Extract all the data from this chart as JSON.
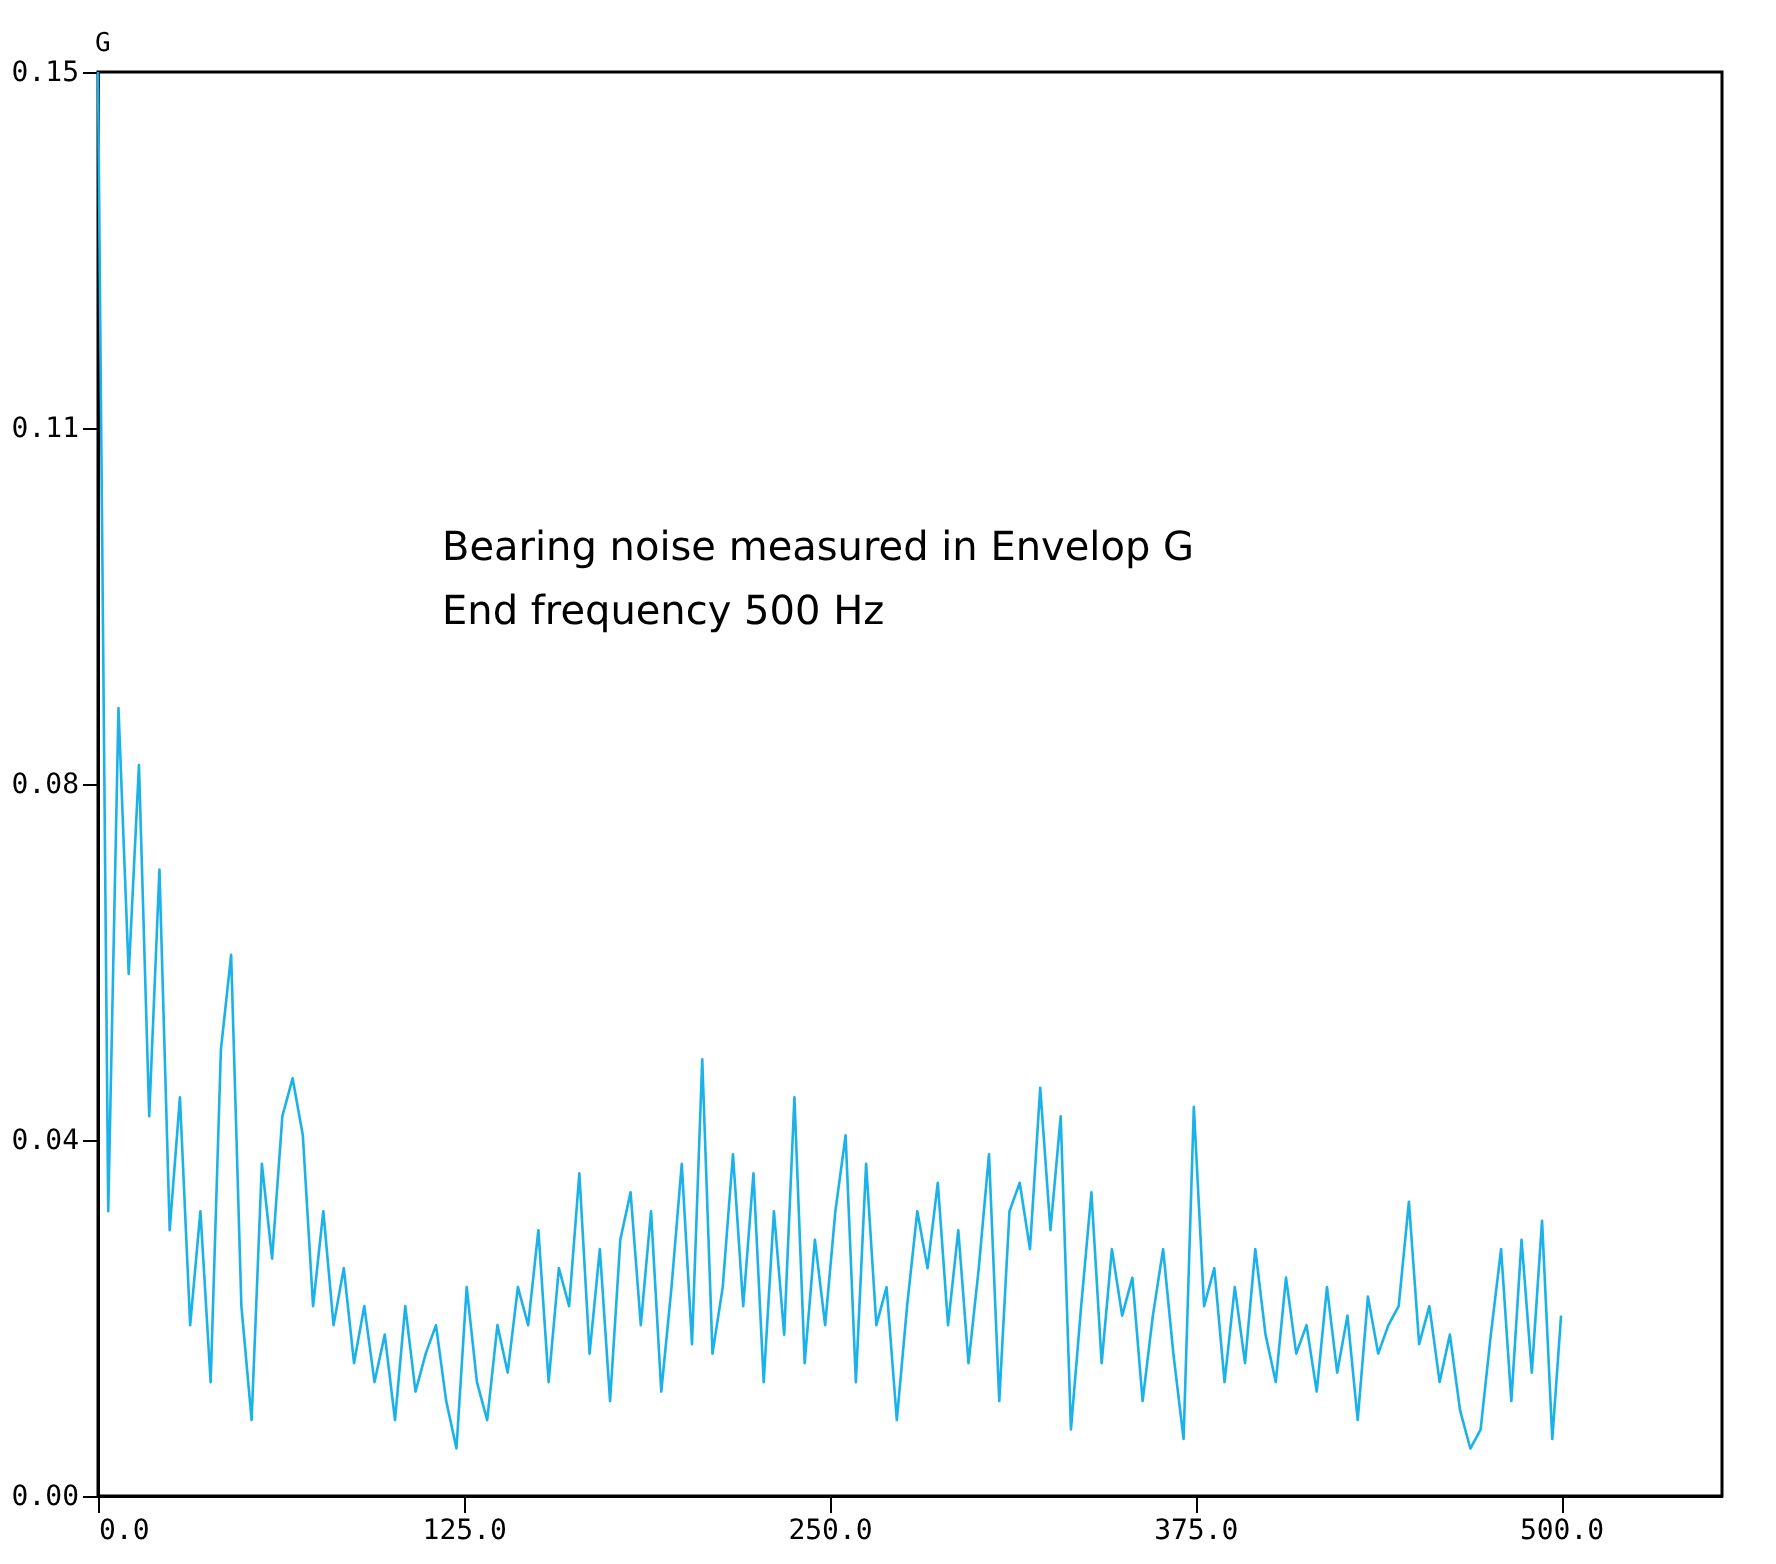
{
  "chart_data": {
    "type": "line",
    "ylabel": "G",
    "annotations": [
      "Bearing noise measured in Envelop G",
      "End frequency 500 Hz"
    ],
    "xlim": [
      0,
      555
    ],
    "ylim": [
      0,
      0.15
    ],
    "xticks": [
      {
        "value": 0,
        "label": "0.0"
      },
      {
        "value": 125,
        "label": "125.0"
      },
      {
        "value": 250,
        "label": "250.0"
      },
      {
        "value": 375,
        "label": "375.0"
      },
      {
        "value": 500,
        "label": "500.0"
      }
    ],
    "yticks": [
      {
        "value": 0,
        "label": "0.00"
      },
      {
        "value": 0.0375,
        "label": "0.04"
      },
      {
        "value": 0.075,
        "label": "0.08"
      },
      {
        "value": 0.1125,
        "label": "0.11"
      },
      {
        "value": 0.15,
        "label": "0.15"
      }
    ],
    "grid": false,
    "marker": "none",
    "line_style": "solid",
    "x": [
      0,
      3.5,
      7,
      10.5,
      14,
      17.5,
      21,
      24.5,
      28,
      31.5,
      35,
      38.5,
      42,
      45.5,
      49,
      52.5,
      56,
      59.5,
      63,
      66.5,
      70,
      73.5,
      77,
      80.5,
      84,
      87.5,
      91,
      94.5,
      98,
      101.5,
      105,
      108.5,
      112,
      115.5,
      119,
      122.5,
      126,
      129.5,
      133,
      136.5,
      140,
      143.5,
      147,
      150.5,
      154,
      157.5,
      161,
      164.5,
      168,
      171.5,
      175,
      178.5,
      182,
      185.5,
      189,
      192.5,
      196,
      199.5,
      203,
      206.5,
      210,
      213.5,
      217,
      220.5,
      224,
      227.5,
      231,
      234.5,
      238,
      241.5,
      245,
      248.5,
      252,
      255.5,
      259,
      262.5,
      266,
      269.5,
      273,
      276.5,
      280,
      283.5,
      287,
      290.5,
      294,
      297.5,
      301,
      304.5,
      308,
      311.5,
      315,
      318.5,
      322,
      325.5,
      329,
      332.5,
      336,
      339.5,
      343,
      346.5,
      350,
      353.5,
      357,
      360.5,
      364,
      367.5,
      371,
      374.5,
      378,
      381.5,
      385,
      388.5,
      392,
      395.5,
      399,
      402.5,
      406,
      409.5,
      413,
      416.5,
      420,
      423.5,
      427,
      430.5,
      434,
      437.5,
      441,
      444.5,
      448,
      451.5,
      455,
      458.5,
      462,
      465.5,
      469,
      472.5,
      476,
      479.5,
      483,
      486.5,
      490,
      493.5,
      497,
      500
    ],
    "series": [
      {
        "color": "#1ab2e8",
        "values": [
          0.15,
          0.03,
          0.083,
          0.055,
          0.077,
          0.04,
          0.066,
          0.028,
          0.042,
          0.018,
          0.03,
          0.012,
          0.047,
          0.057,
          0.02,
          0.008,
          0.035,
          0.025,
          0.04,
          0.044,
          0.038,
          0.02,
          0.03,
          0.018,
          0.024,
          0.014,
          0.02,
          0.012,
          0.017,
          0.008,
          0.02,
          0.011,
          0.015,
          0.018,
          0.01,
          0.005,
          0.022,
          0.012,
          0.008,
          0.018,
          0.013,
          0.022,
          0.018,
          0.028,
          0.012,
          0.024,
          0.02,
          0.034,
          0.015,
          0.026,
          0.01,
          0.027,
          0.032,
          0.018,
          0.03,
          0.011,
          0.022,
          0.035,
          0.016,
          0.046,
          0.015,
          0.022,
          0.036,
          0.02,
          0.034,
          0.012,
          0.03,
          0.017,
          0.042,
          0.014,
          0.027,
          0.018,
          0.03,
          0.038,
          0.012,
          0.035,
          0.018,
          0.022,
          0.008,
          0.02,
          0.03,
          0.024,
          0.033,
          0.018,
          0.028,
          0.014,
          0.024,
          0.036,
          0.01,
          0.03,
          0.033,
          0.026,
          0.043,
          0.028,
          0.04,
          0.007,
          0.02,
          0.032,
          0.014,
          0.026,
          0.019,
          0.023,
          0.01,
          0.019,
          0.026,
          0.015,
          0.006,
          0.041,
          0.02,
          0.024,
          0.012,
          0.022,
          0.014,
          0.026,
          0.017,
          0.012,
          0.023,
          0.015,
          0.018,
          0.011,
          0.022,
          0.013,
          0.019,
          0.008,
          0.021,
          0.015,
          0.018,
          0.02,
          0.031,
          0.016,
          0.02,
          0.012,
          0.017,
          0.009,
          0.005,
          0.007,
          0.017,
          0.026,
          0.01,
          0.027,
          0.013,
          0.029,
          0.006,
          0.019
        ]
      }
    ]
  }
}
